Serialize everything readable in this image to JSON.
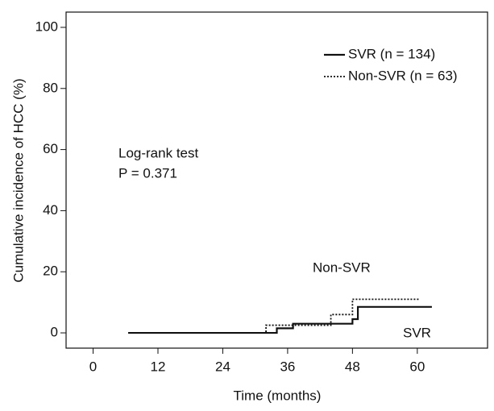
{
  "chart_data": {
    "type": "step",
    "xlabel": "Time (months)",
    "ylabel": "Cumulative incidence of HCC (%)",
    "xlim": [
      -5,
      73
    ],
    "xticks": [
      0,
      12,
      24,
      36,
      48,
      60
    ],
    "ylim": [
      -5,
      105
    ],
    "yticks": [
      0,
      20,
      40,
      60,
      80,
      100
    ],
    "legend": "upper right",
    "series": [
      {
        "name": "SVR (n = 134)",
        "color": "#111111",
        "dash": "solid",
        "x": [
          6.5,
          34,
          34,
          37,
          37,
          48,
          48,
          49,
          49,
          62.7
        ],
        "values": [
          0,
          0,
          1.5,
          1.5,
          3,
          3,
          4.5,
          4.5,
          8.5,
          8.5
        ]
      },
      {
        "name": "Non-SVR (n = 63)",
        "color": "#111111",
        "dash": "dotted",
        "x": [
          6.5,
          32,
          32,
          44,
          44,
          48,
          48,
          60.5
        ],
        "values": [
          0,
          0,
          2.5,
          2.5,
          6,
          6,
          11,
          11
        ]
      }
    ],
    "annotations": [
      "Log-rank test",
      "P = 0.371",
      "Non-SVR",
      "SVR"
    ]
  }
}
